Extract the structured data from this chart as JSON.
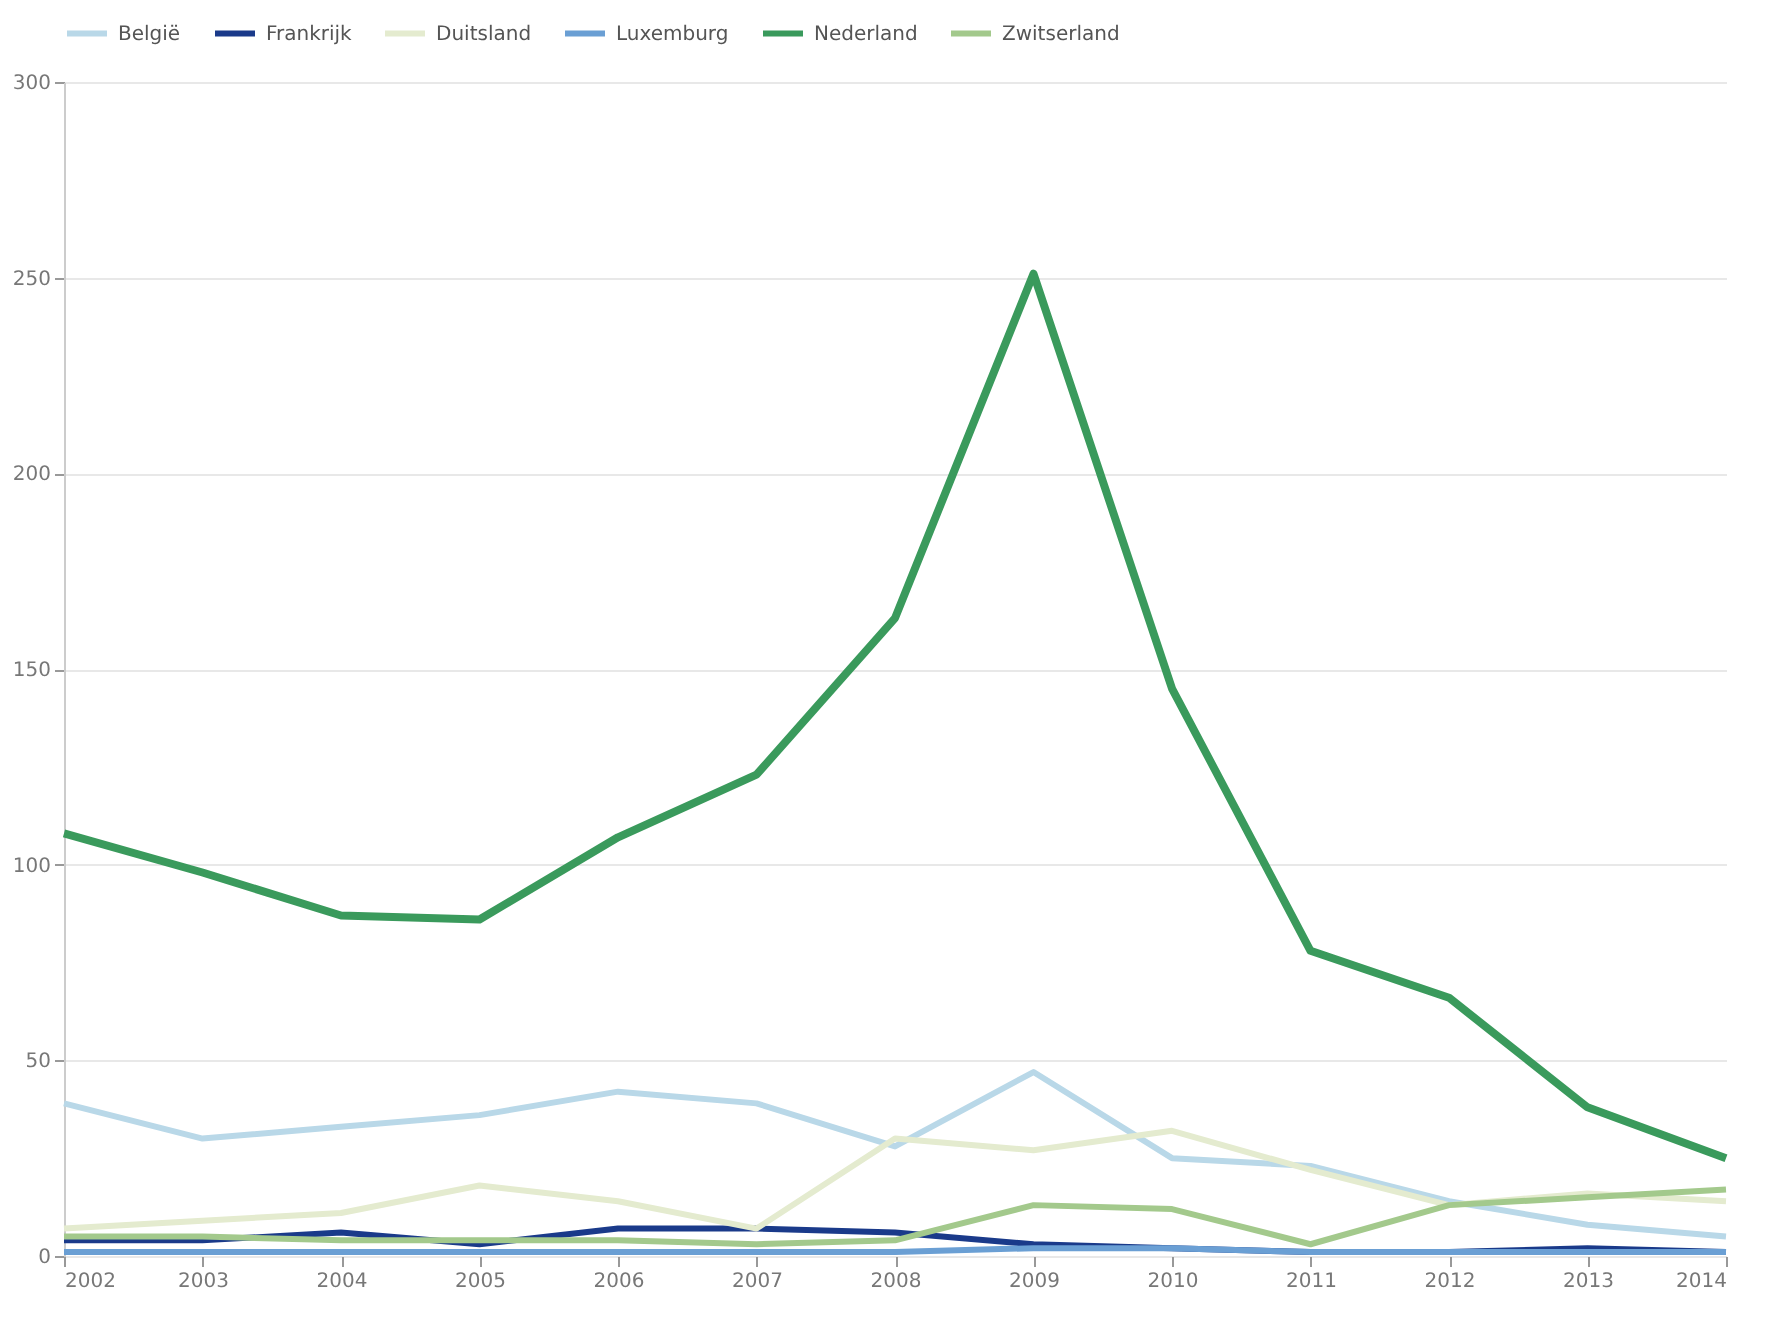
{
  "chart_data": {
    "type": "line",
    "x": [
      2002,
      2003,
      2004,
      2005,
      2006,
      2007,
      2008,
      2009,
      2010,
      2011,
      2012,
      2013,
      2014
    ],
    "series": [
      {
        "name": "België",
        "color": "#b9d8e8",
        "values": [
          39,
          30,
          33,
          36,
          42,
          39,
          28,
          47,
          25,
          23,
          14,
          8,
          5
        ]
      },
      {
        "name": "Frankrijk",
        "color": "#1a3a8a",
        "values": [
          4,
          4,
          6,
          3,
          7,
          7,
          6,
          3,
          2,
          1,
          1,
          2,
          1
        ]
      },
      {
        "name": "Duitsland",
        "color": "#e4ebcf",
        "values": [
          7,
          9,
          11,
          18,
          14,
          7,
          30,
          27,
          32,
          22,
          13,
          16,
          14
        ]
      },
      {
        "name": "Luxemburg",
        "color": "#6a9fd4",
        "values": [
          1,
          1,
          1,
          1,
          1,
          1,
          1,
          2,
          2,
          1,
          1,
          1,
          1
        ]
      },
      {
        "name": "Nederland",
        "color": "#3a9a5c",
        "values": [
          108,
          98,
          87,
          86,
          107,
          123,
          163,
          251,
          145,
          78,
          66,
          38,
          25
        ]
      },
      {
        "name": "Zwitserland",
        "color": "#a3c98c",
        "values": [
          5,
          5,
          4,
          4,
          4,
          3,
          4,
          13,
          12,
          3,
          13,
          15,
          17
        ]
      }
    ],
    "xlim": [
      2002,
      2014
    ],
    "xticks": [
      2002,
      2003,
      2004,
      2005,
      2006,
      2007,
      2008,
      2009,
      2010,
      2011,
      2012,
      2013,
      2014
    ],
    "ylim": [
      0,
      300
    ],
    "yticks": [
      0,
      50,
      100,
      150,
      200,
      250,
      300
    ],
    "grid": "y",
    "legend": "top",
    "marker": "none",
    "line_style": "solid"
  }
}
